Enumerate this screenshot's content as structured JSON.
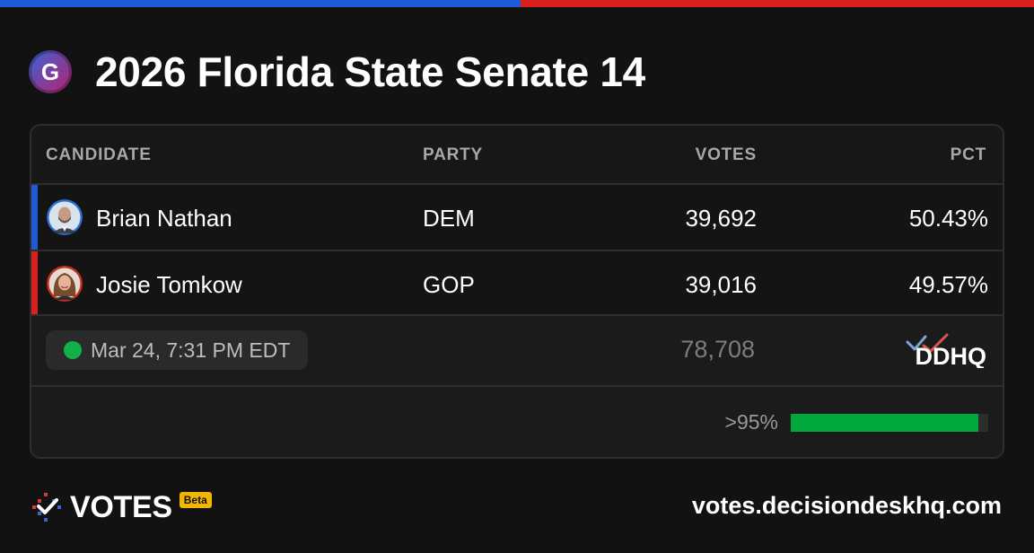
{
  "colors": {
    "dem": "#1d5ad8",
    "gop": "#d8211c",
    "progress": "#00a83e",
    "live_dot": "#12b04a"
  },
  "header": {
    "logo_letter": "G",
    "title": "2026 Florida State Senate 14"
  },
  "table": {
    "columns": {
      "candidate": "CANDIDATE",
      "party": "PARTY",
      "votes": "VOTES",
      "pct": "PCT"
    },
    "rows": [
      {
        "name": "Brian Nathan",
        "party": "DEM",
        "votes": "39,692",
        "pct": "50.43%",
        "avatar_icon": "candidate-photo",
        "party_color": "#1d5ad8"
      },
      {
        "name": "Josie Tomkow",
        "party": "GOP",
        "votes": "39,016",
        "pct": "49.57%",
        "avatar_icon": "candidate-photo",
        "party_color": "#d8211c"
      }
    ],
    "summary": {
      "updated": "Mar 24, 7:31 PM EDT",
      "total_votes": "78,708",
      "source_logo": "DDHQ"
    },
    "reporting": {
      "label": ">95%",
      "fraction": 0.95
    }
  },
  "footer": {
    "brand": "VOTES",
    "badge": "Beta",
    "url": "votes.decisiondeskhq.com"
  }
}
